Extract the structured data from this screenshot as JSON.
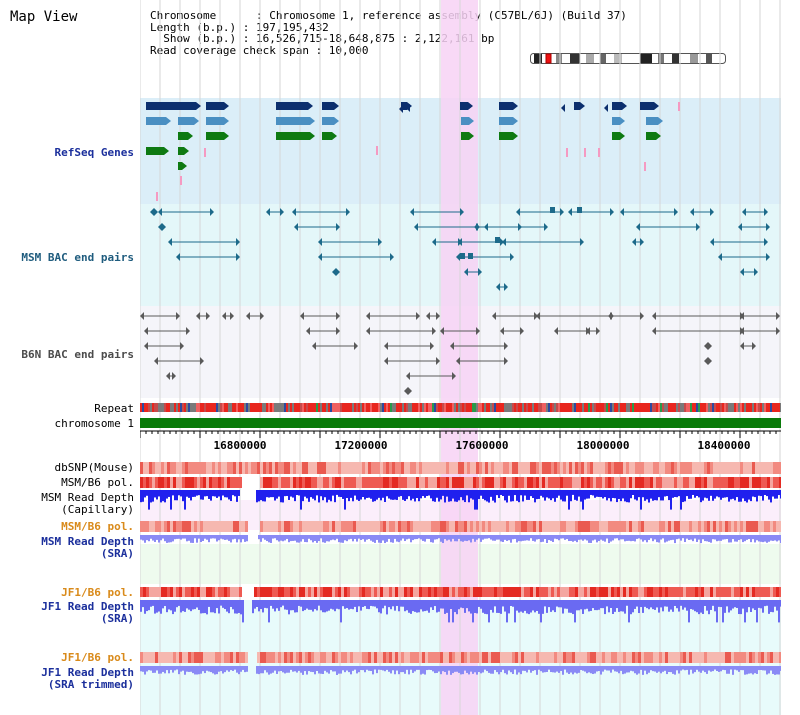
{
  "page": {
    "title": "Map View"
  },
  "info": {
    "line1": "Chromosome      : Chromosome 1, reference assembly (C57BL/6J) (Build 37)",
    "line2": "Length (b.p.) : 197,195,432",
    "line3": "  Show (b.p.) : 16,526,715-18,648,875 : 2,122,161 bp",
    "line4": "Read coverage check span : 10,000"
  },
  "tracks": {
    "refseq": "RefSeq Genes",
    "msm_bac": "MSM BAC end pairs",
    "b6n_bac": "B6N BAC end pairs",
    "repeat": "Repeat",
    "chromosome": "chromosome 1",
    "dbsnp": "dbSNP(Mouse)",
    "msm_b6_pol": "MSM/B6 pol.",
    "msm_read_depth": "MSM Read Depth",
    "capillary": "(Capillary)",
    "msm_b6_pol2": "MSM/B6 pol.",
    "msm_read_depth2": "MSM Read Depth",
    "sra": "(SRA)",
    "jf1_b6_pol": "JF1/B6 pol.",
    "jf1_read_depth": "JF1 Read Depth",
    "sra2": "(SRA)",
    "jf1_b6_pol2": "JF1/B6 pol.",
    "jf1_read_depth2": "JF1 Read Depth",
    "sra_trimmed": "(SRA trimmed)"
  },
  "axis": {
    "ticks": [
      "16800000",
      "17200000",
      "17600000",
      "18000000",
      "18400000"
    ]
  },
  "colors": {
    "refseq_bg": "#dbeef8",
    "msm_bac_bg": "#e4f7f9",
    "b6n_bac_bg": "#f5f5fa",
    "highlight": "#f7d2f4",
    "chromosome_bar": "#0a7a0a",
    "gene_navy": "#0c2f6e",
    "gene_blue": "#4a8fc2",
    "gene_green": "#0e7a12",
    "depth_blue": "#2020ee",
    "depth_light": "#8a8af5"
  }
}
